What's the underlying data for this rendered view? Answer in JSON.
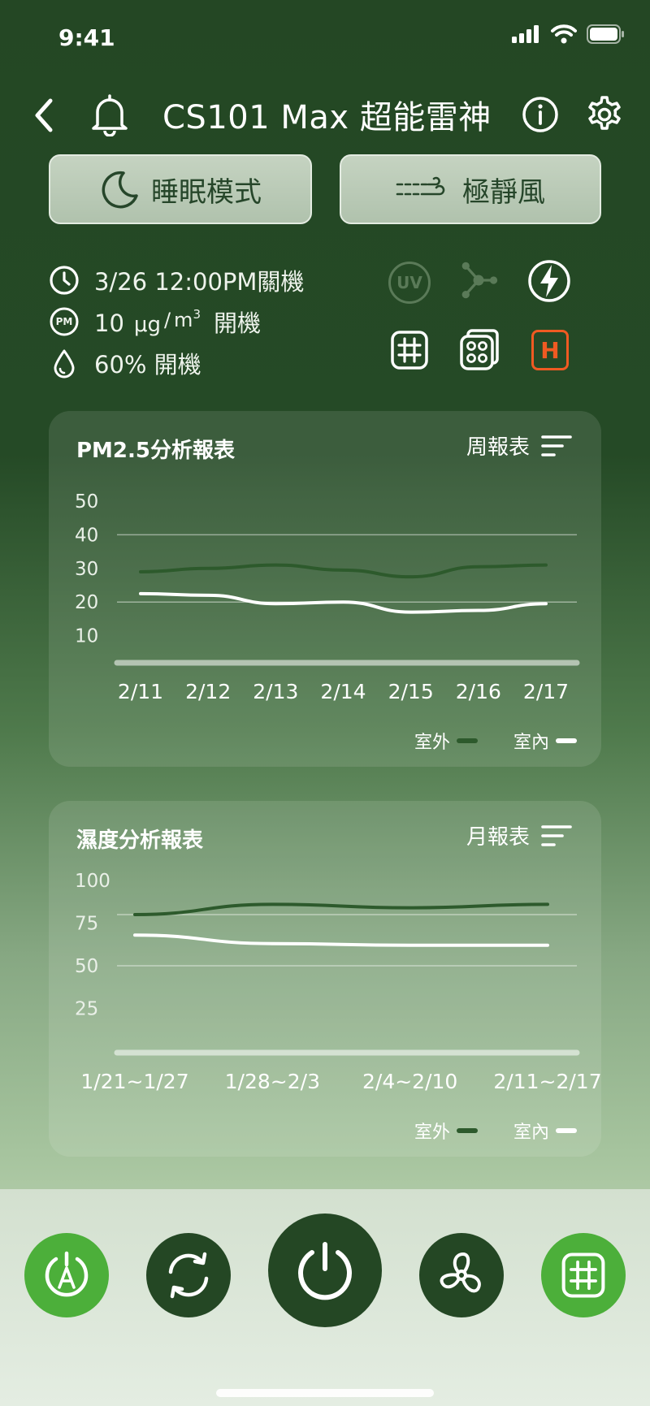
{
  "status_bar": {
    "time": "9:41"
  },
  "header": {
    "title": "CS101 Max 超能雷神"
  },
  "modes": [
    {
      "label": "睡眠模式",
      "icon": "moon-icon"
    },
    {
      "label": "極靜風",
      "icon": "quiet-wind-icon"
    }
  ],
  "info": {
    "timer": "3/26 12:00PM關機",
    "pm_value": "10",
    "pm_unit_a": "μg",
    "pm_unit_b": "m",
    "pm_unit_exp": "3",
    "pm_action": "開機",
    "pm_badge": "PM",
    "humidity": "60% 開機"
  },
  "features": {
    "uv_label": "UV",
    "h_label": "H"
  },
  "colors": {
    "dark_green": "#244724",
    "accent_green": "#4caf3a",
    "heater_orange": "#f05a22",
    "outdoor_line": "#2d5a2c",
    "indoor_line": "#ffffff"
  },
  "pm_card": {
    "title": "PM2.5分析報表",
    "period": "周報表",
    "legend_outdoor": "室外",
    "legend_indoor": "室內"
  },
  "hum_card": {
    "title": "濕度分析報表",
    "period": "月報表",
    "legend_outdoor": "室外",
    "legend_indoor": "室內"
  },
  "chart_data": [
    {
      "type": "line",
      "title": "PM2.5分析報表",
      "x": [
        "2/11",
        "2/12",
        "2/13",
        "2/14",
        "2/15",
        "2/16",
        "2/17"
      ],
      "y_ticks": [
        "50",
        "40",
        "30",
        "20",
        "10"
      ],
      "ylim": [
        0,
        50
      ],
      "gridlines_at": [
        40,
        20
      ],
      "legend_placement": "bottom-right",
      "series": [
        {
          "name": "室外",
          "color": "#2d5a2c",
          "values": [
            29,
            30,
            31,
            29.5,
            27.5,
            30.5,
            31
          ]
        },
        {
          "name": "室內",
          "color": "#ffffff",
          "values": [
            22.5,
            22,
            19.5,
            20,
            17,
            17.5,
            19.5
          ]
        }
      ]
    },
    {
      "type": "line",
      "title": "濕度分析報表",
      "x": [
        "1/21~1/27",
        "1/28~2/3",
        "2/4~2/10",
        "2/11~2/17"
      ],
      "y_ticks": [
        "100",
        "75",
        "50",
        "25"
      ],
      "ylim": [
        0,
        100
      ],
      "gridlines_at": [
        80,
        50
      ],
      "legend_placement": "bottom-right",
      "series": [
        {
          "name": "室外",
          "color": "#2d5a2c",
          "values": [
            80,
            86,
            84,
            86
          ]
        },
        {
          "name": "室內",
          "color": "#ffffff",
          "values": [
            68,
            63,
            62,
            62
          ]
        }
      ]
    }
  ]
}
